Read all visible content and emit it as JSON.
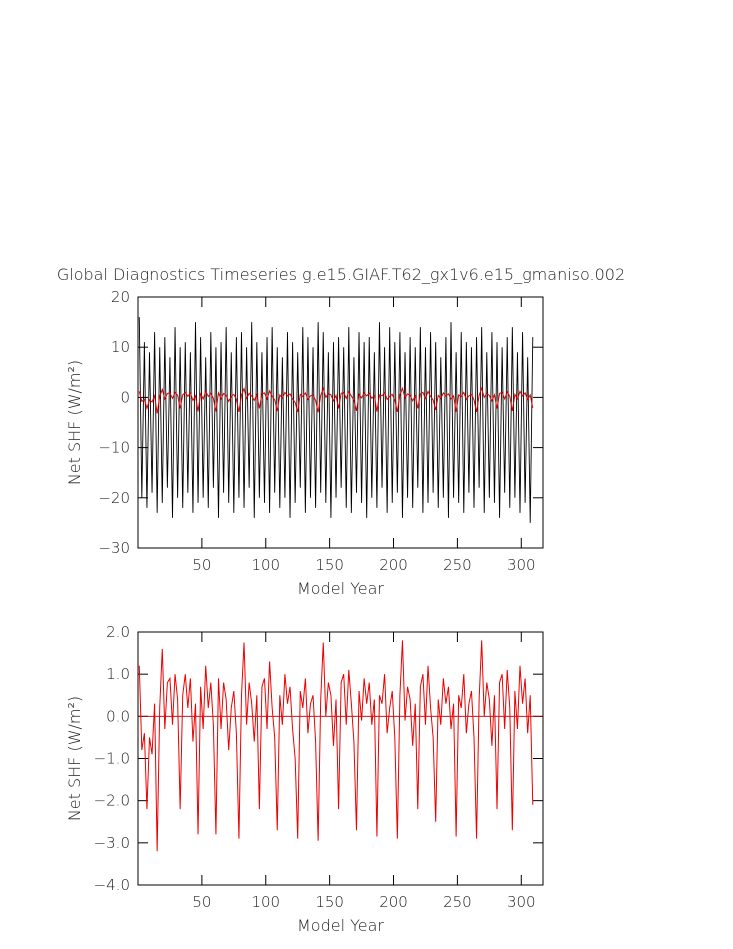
{
  "chart_data": [
    {
      "type": "line",
      "title": "Global Diagnostics Timeseries g.e15.GIAF.T62_gx1v6.e15_gmaniso.002",
      "xlabel": "Model Year",
      "ylabel": "Net SHF (W/m²)",
      "xlim": [
        0,
        317
      ],
      "xticks": [
        50,
        100,
        150,
        200,
        250,
        300
      ],
      "ylim": [
        -30,
        20
      ],
      "yticks": [
        {
          "value": -30,
          "label": "−30"
        },
        {
          "value": -20,
          "label": "−20"
        },
        {
          "value": -10,
          "label": "−10"
        },
        0,
        10,
        20
      ],
      "x": [
        1,
        3,
        5,
        7,
        9,
        11,
        13,
        15,
        17,
        19,
        21,
        23,
        25,
        27,
        29,
        31,
        33,
        35,
        37,
        39,
        41,
        43,
        45,
        47,
        49,
        51,
        53,
        55,
        57,
        59,
        61,
        63,
        65,
        67,
        69,
        71,
        73,
        75,
        77,
        79,
        81,
        83,
        85,
        87,
        89,
        91,
        93,
        95,
        97,
        99,
        101,
        103,
        105,
        107,
        109,
        111,
        113,
        115,
        117,
        119,
        121,
        123,
        125,
        127,
        129,
        131,
        133,
        135,
        137,
        139,
        141,
        143,
        145,
        147,
        149,
        151,
        153,
        155,
        157,
        159,
        161,
        163,
        165,
        167,
        169,
        171,
        173,
        175,
        177,
        179,
        181,
        183,
        185,
        187,
        189,
        191,
        193,
        195,
        197,
        199,
        201,
        203,
        205,
        207,
        209,
        211,
        213,
        215,
        217,
        219,
        221,
        223,
        225,
        227,
        229,
        231,
        233,
        235,
        237,
        239,
        241,
        243,
        245,
        247,
        249,
        251,
        253,
        255,
        257,
        259,
        261,
        263,
        265,
        267,
        269,
        271,
        273,
        275,
        277,
        279,
        281,
        283,
        285,
        287,
        289,
        291,
        293,
        295,
        297,
        299,
        301,
        303,
        305,
        307,
        309
      ],
      "series": [
        {
          "color": "#000000",
          "values": [
            16,
            -20,
            11,
            -22,
            9,
            -19,
            13,
            -23,
            10,
            -21,
            12,
            -18,
            8,
            -24,
            14,
            -20,
            10,
            -22,
            11,
            -19,
            9,
            -23,
            15,
            -21,
            12,
            -20,
            8,
            -22,
            13,
            -18,
            10,
            -24,
            11,
            -19,
            14,
            -21,
            9,
            -23,
            12,
            -20,
            13,
            -22,
            10,
            -18,
            15,
            -24,
            11,
            -20,
            9,
            -21,
            12,
            -23,
            14,
            -19,
            10,
            -22,
            8,
            -20,
            13,
            -24,
            11,
            -21,
            9,
            -18,
            14,
            -23,
            12,
            -20,
            10,
            -22,
            15,
            -19,
            13,
            -21,
            9,
            -24,
            11,
            -20,
            12,
            -18,
            10,
            -22,
            14,
            -23,
            8,
            -19,
            13,
            -21,
            11,
            -24,
            12,
            -20,
            9,
            -22,
            15,
            -18,
            10,
            -23,
            14,
            -21,
            11,
            -19,
            13,
            -24,
            9,
            -20,
            12,
            -22,
            10,
            -18,
            14,
            -23,
            10,
            -21,
            13,
            -19,
            11,
            -22,
            8,
            -20,
            12,
            -24,
            15,
            -20,
            9,
            -21,
            13,
            -23,
            11,
            -19,
            10,
            -22,
            12,
            -18,
            14,
            -23,
            9,
            -20,
            13,
            -21,
            11,
            -24,
            10,
            -19,
            12,
            -22,
            14,
            -20,
            9,
            -23,
            13,
            -21,
            8,
            -25,
            12
          ]
        },
        {
          "color": "#dd0000",
          "values": [
            1.2,
            -0.8,
            -0.4,
            -2.2,
            -0.5,
            -0.9,
            0.3,
            -3.2,
            0.2,
            1.6,
            -0.3,
            0.8,
            0.9,
            -0.2,
            1.0,
            0.4,
            -2.2,
            0.5,
            1.0,
            0.2,
            0.9,
            -0.6,
            0.3,
            -2.8,
            0.7,
            -0.3,
            1.2,
            0.2,
            0.8,
            -0.2,
            -2.8,
            0.9,
            -0.3,
            0.8,
            0.4,
            -0.8,
            0.2,
            0.6,
            -0.4,
            -2.9,
            0.5,
            1.75,
            -0.2,
            0.8,
            0.3,
            -0.6,
            0.5,
            -2.2,
            0.7,
            0.9,
            -0.3,
            1.3,
            0.2,
            -0.5,
            -2.7,
            0.5,
            -0.2,
            1.0,
            0.3,
            0.7,
            -0.3,
            -1.0,
            -2.9,
            0.6,
            0.2,
            0.9,
            -0.4,
            0.3,
            0.5,
            -0.6,
            -2.95,
            0.4,
            1.75,
            0.0,
            0.8,
            0.5,
            -0.7,
            0.4,
            -2.2,
            0.8,
            1.0,
            -0.2,
            1.1,
            0.3,
            -0.6,
            -2.7,
            0.6,
            -0.1,
            0.9,
            0.3,
            0.8,
            -0.2,
            0.4,
            -2.85,
            0.5,
            0.3,
            1.0,
            -0.4,
            0.2,
            0.6,
            -0.5,
            -2.9,
            0.5,
            1.8,
            -0.1,
            0.7,
            0.4,
            -0.7,
            0.3,
            -2.2,
            0.7,
            1.0,
            -0.2,
            1.2,
            0.2,
            -0.5,
            -2.5,
            0.4,
            -0.2,
            0.9,
            0.3,
            0.7,
            -0.3,
            0.3,
            -2.85,
            0.5,
            0.2,
            1.0,
            -0.4,
            0.3,
            0.6,
            -0.5,
            -2.9,
            0.4,
            1.8,
            0.0,
            0.8,
            0.4,
            -0.7,
            0.5,
            -2.2,
            0.8,
            1.0,
            -0.3,
            1.1,
            0.2,
            -2.7,
            0.6,
            -0.3,
            1.2,
            0.3,
            0.9,
            -0.4,
            0.5,
            -2.1
          ]
        }
      ]
    },
    {
      "type": "line",
      "xlabel": "Model Year",
      "ylabel": "Net SHF (W/m²)",
      "xlim": [
        0,
        317
      ],
      "xticks": [
        50,
        100,
        150,
        200,
        250,
        300
      ],
      "ylim": [
        -4,
        2
      ],
      "yticks": [
        {
          "value": -4,
          "label": "−4.0"
        },
        {
          "value": -3,
          "label": "−3.0"
        },
        {
          "value": -2,
          "label": "−2.0"
        },
        {
          "value": -1,
          "label": "−1.0"
        },
        {
          "value": 0,
          "label": "0.0"
        },
        {
          "value": 1,
          "label": "1.0"
        },
        {
          "value": 2,
          "label": "2.0"
        }
      ],
      "hline": 0,
      "x": [
        1,
        3,
        5,
        7,
        9,
        11,
        13,
        15,
        17,
        19,
        21,
        23,
        25,
        27,
        29,
        31,
        33,
        35,
        37,
        39,
        41,
        43,
        45,
        47,
        49,
        51,
        53,
        55,
        57,
        59,
        61,
        63,
        65,
        67,
        69,
        71,
        73,
        75,
        77,
        79,
        81,
        83,
        85,
        87,
        89,
        91,
        93,
        95,
        97,
        99,
        101,
        103,
        105,
        107,
        109,
        111,
        113,
        115,
        117,
        119,
        121,
        123,
        125,
        127,
        129,
        131,
        133,
        135,
        137,
        139,
        141,
        143,
        145,
        147,
        149,
        151,
        153,
        155,
        157,
        159,
        161,
        163,
        165,
        167,
        169,
        171,
        173,
        175,
        177,
        179,
        181,
        183,
        185,
        187,
        189,
        191,
        193,
        195,
        197,
        199,
        201,
        203,
        205,
        207,
        209,
        211,
        213,
        215,
        217,
        219,
        221,
        223,
        225,
        227,
        229,
        231,
        233,
        235,
        237,
        239,
        241,
        243,
        245,
        247,
        249,
        251,
        253,
        255,
        257,
        259,
        261,
        263,
        265,
        267,
        269,
        271,
        273,
        275,
        277,
        279,
        281,
        283,
        285,
        287,
        289,
        291,
        293,
        295,
        297,
        299,
        301,
        303,
        305,
        307,
        309
      ],
      "series": [
        {
          "color": "#ee0000",
          "values": [
            1.2,
            -0.8,
            -0.4,
            -2.2,
            -0.5,
            -0.9,
            0.3,
            -3.2,
            0.2,
            1.6,
            -0.3,
            0.8,
            0.9,
            -0.2,
            1.0,
            0.4,
            -2.2,
            0.5,
            1.0,
            0.2,
            0.9,
            -0.6,
            0.3,
            -2.8,
            0.7,
            -0.3,
            1.2,
            0.2,
            0.8,
            -0.2,
            -2.8,
            0.9,
            -0.3,
            0.8,
            0.4,
            -0.8,
            0.2,
            0.6,
            -0.4,
            -2.9,
            0.5,
            1.75,
            -0.2,
            0.8,
            0.3,
            -0.6,
            0.5,
            -2.2,
            0.7,
            0.9,
            -0.3,
            1.3,
            0.2,
            -0.5,
            -2.7,
            0.5,
            -0.2,
            1.0,
            0.3,
            0.7,
            -0.3,
            -1.0,
            -2.9,
            0.6,
            0.2,
            0.9,
            -0.4,
            0.3,
            0.5,
            -0.6,
            -2.95,
            0.4,
            1.75,
            0.0,
            0.8,
            0.5,
            -0.7,
            0.4,
            -2.2,
            0.8,
            1.0,
            -0.2,
            1.1,
            0.3,
            -0.6,
            -2.7,
            0.6,
            -0.1,
            0.9,
            0.3,
            0.8,
            -0.2,
            0.4,
            -2.85,
            0.5,
            0.3,
            1.0,
            -0.4,
            0.2,
            0.6,
            -0.5,
            -2.9,
            0.5,
            1.8,
            -0.1,
            0.7,
            0.4,
            -0.7,
            0.3,
            -2.2,
            0.7,
            1.0,
            -0.2,
            1.2,
            0.2,
            -0.5,
            -2.5,
            0.4,
            -0.2,
            0.9,
            0.3,
            0.7,
            -0.3,
            0.3,
            -2.85,
            0.5,
            0.2,
            1.0,
            -0.4,
            0.3,
            0.6,
            -0.5,
            -2.9,
            0.4,
            1.8,
            0.0,
            0.8,
            0.4,
            -0.7,
            0.5,
            -2.2,
            0.8,
            1.0,
            -0.3,
            1.1,
            0.2,
            -2.7,
            0.6,
            -0.3,
            1.2,
            0.3,
            0.9,
            -0.4,
            0.5,
            -2.1
          ]
        }
      ]
    }
  ]
}
